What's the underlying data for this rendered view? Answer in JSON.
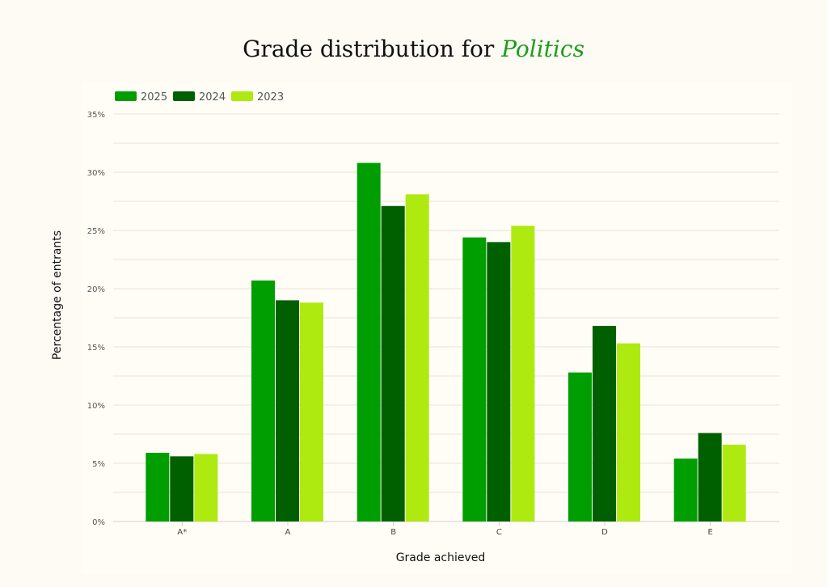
{
  "title_prefix": "Grade distribution for ",
  "title_subject": "Politics",
  "chart_data": {
    "type": "bar",
    "title": "Grade distribution for Politics",
    "xlabel": "Grade achieved",
    "ylabel": "Percentage of entrants",
    "categories": [
      "A*",
      "A",
      "B",
      "C",
      "D",
      "E"
    ],
    "series": [
      {
        "name": "2025",
        "color": "#009e00",
        "values": [
          5.9,
          20.7,
          30.8,
          24.4,
          12.8,
          5.4
        ]
      },
      {
        "name": "2024",
        "color": "#006000",
        "values": [
          5.6,
          19.0,
          27.1,
          24.0,
          16.8,
          7.6
        ]
      },
      {
        "name": "2023",
        "color": "#aeea10",
        "values": [
          5.8,
          18.8,
          28.1,
          25.4,
          15.3,
          6.6
        ]
      }
    ],
    "ylim": [
      0,
      35
    ],
    "yticks": [
      "0%",
      "5%",
      "10%",
      "15%",
      "20%",
      "25%",
      "30%",
      "35%"
    ],
    "grid": true,
    "legend": "top-left"
  }
}
